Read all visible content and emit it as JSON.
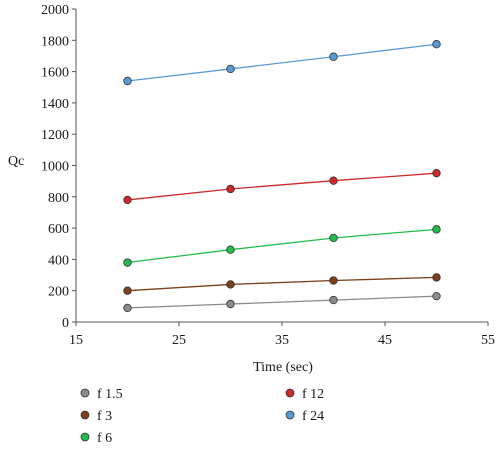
{
  "chart_data": {
    "type": "line",
    "xlabel": "Time (sec)",
    "ylabel": "Qc",
    "xlim": [
      15,
      55
    ],
    "ylim": [
      0,
      2000
    ],
    "x_ticks": [
      15,
      25,
      35,
      45,
      55
    ],
    "y_ticks": [
      0,
      200,
      400,
      600,
      800,
      1000,
      1200,
      1400,
      1600,
      1800,
      2000
    ],
    "x": [
      20,
      30,
      40,
      50
    ],
    "series": [
      {
        "name": "f 1.5",
        "color": "#8c8c8c",
        "values": [
          90,
          115,
          140,
          165
        ]
      },
      {
        "name": "f 3",
        "color": "#7b3f1c",
        "values": [
          200,
          240,
          265,
          285
        ]
      },
      {
        "name": "f 6",
        "color": "#22bb4c",
        "values": [
          380,
          462,
          537,
          592
        ]
      },
      {
        "name": "f 12",
        "color": "#cc2a2a",
        "values": [
          780,
          850,
          903,
          951
        ]
      },
      {
        "name": "f 24",
        "color": "#5b9bd5",
        "values": [
          1540,
          1617,
          1695,
          1775
        ]
      }
    ],
    "grid": false,
    "legend_position": "bottom"
  }
}
